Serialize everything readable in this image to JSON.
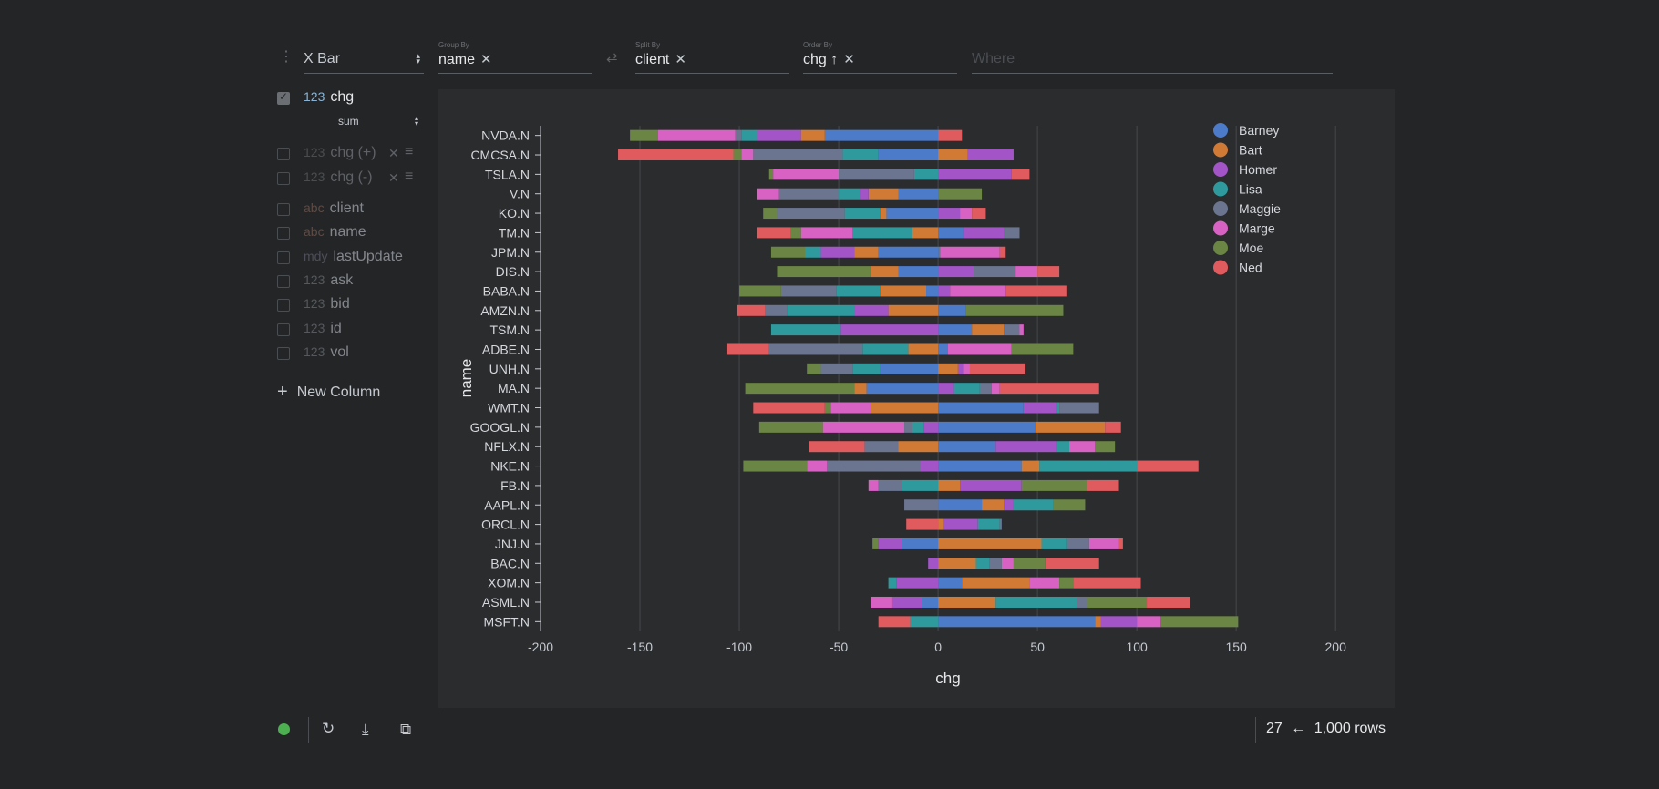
{
  "toolbar": {
    "plugin": "X Bar",
    "group_by": {
      "label": "Group By",
      "value": "name"
    },
    "split_by": {
      "label": "Split By",
      "value": "client"
    },
    "order_by": {
      "label": "Order By",
      "value": "chg ↑"
    },
    "where_placeholder": "Where"
  },
  "sidebar": {
    "active": [
      {
        "type": "123",
        "name": "chg",
        "agg": "sum"
      }
    ],
    "expressions": [
      {
        "type": "123",
        "name": "chg (+)"
      },
      {
        "type": "123",
        "name": "chg (-)"
      }
    ],
    "columns": [
      {
        "type": "abc",
        "name": "client"
      },
      {
        "type": "abc",
        "name": "name"
      },
      {
        "type": "mdy",
        "name": "lastUpdate"
      },
      {
        "type": "123",
        "name": "ask"
      },
      {
        "type": "123",
        "name": "bid"
      },
      {
        "type": "123",
        "name": "id"
      },
      {
        "type": "123",
        "name": "vol"
      }
    ],
    "new_column": "New Column"
  },
  "footer": {
    "count": "27",
    "arrow": "←",
    "rows": "1,000 rows",
    "status_color": "#4caf50"
  },
  "chart_data": {
    "type": "bar",
    "orientation": "horizontal",
    "stacked": true,
    "xlabel": "chg",
    "ylabel": "name",
    "xlim": [
      -200,
      210
    ],
    "xticks": [
      -200,
      -150,
      -100,
      -50,
      0,
      50,
      100,
      150,
      200
    ],
    "legend_position": "top-right",
    "grid": true,
    "categories": [
      "NVDA.N",
      "CMCSA.N",
      "TSLA.N",
      "V.N",
      "KO.N",
      "TM.N",
      "JPM.N",
      "DIS.N",
      "BABA.N",
      "AMZN.N",
      "TSM.N",
      "ADBE.N",
      "UNH.N",
      "MA.N",
      "WMT.N",
      "GOOGL.N",
      "NFLX.N",
      "NKE.N",
      "FB.N",
      "AAPL.N",
      "ORCL.N",
      "JNJ.N",
      "BAC.N",
      "XOM.N",
      "ASML.N",
      "MSFT.N"
    ],
    "series": [
      {
        "name": "Barney",
        "color": "#4c7bc9",
        "values": [
          -57,
          -30,
          0,
          -20,
          -26,
          13,
          -30,
          -20,
          -6,
          14,
          17,
          5,
          -29,
          -36,
          43,
          49,
          29,
          42,
          0,
          22,
          0,
          -18,
          0,
          12,
          -8,
          79
        ]
      },
      {
        "name": "Bart",
        "color": "#d07a36",
        "values": [
          -12,
          15,
          0,
          -15,
          -3,
          -13,
          -12,
          -14,
          -23,
          -25,
          16,
          -15,
          10,
          -6,
          -34,
          35,
          -20,
          9,
          11,
          11,
          3,
          52,
          19,
          34,
          29,
          3
        ]
      },
      {
        "name": "Homer",
        "color": "#a355c8",
        "values": [
          -22,
          23,
          37,
          -4,
          11,
          20,
          -17,
          18,
          6,
          -17,
          -49,
          0,
          3,
          8,
          17,
          -7,
          31,
          -9,
          31,
          5,
          17,
          -12,
          -5,
          -21,
          -15,
          18
        ]
      },
      {
        "name": "Lisa",
        "color": "#2f9a9e",
        "values": [
          -8,
          -18,
          -12,
          -11,
          -18,
          -30,
          -8,
          0,
          -22,
          -34,
          -35,
          -23,
          -14,
          13,
          1,
          -6,
          6,
          49,
          -18,
          20,
          11,
          13,
          7,
          -4,
          41,
          -14
        ]
      },
      {
        "name": "Maggie",
        "color": "#6b7590",
        "values": [
          -3,
          -45,
          -38,
          -30,
          -34,
          8,
          1,
          21,
          -28,
          -11,
          8,
          -47,
          -16,
          6,
          20,
          -4,
          -17,
          -47,
          -12,
          -17,
          1,
          11,
          6,
          0,
          5,
          0
        ]
      },
      {
        "name": "Marge",
        "color": "#d862c4",
        "values": [
          -39,
          -6,
          -33,
          -11,
          6,
          -26,
          30,
          11,
          28,
          0,
          2,
          32,
          3,
          4,
          -20,
          -41,
          13,
          -10,
          -5,
          0,
          0,
          15,
          6,
          15,
          -11,
          12
        ]
      },
      {
        "name": "Moe",
        "color": "#6b8544",
        "values": [
          -14,
          -4,
          -2,
          22,
          -7,
          -5,
          -17,
          -47,
          -21,
          49,
          0,
          31,
          -7,
          -55,
          -3,
          -32,
          10,
          -32,
          33,
          16,
          0,
          -3,
          16,
          7,
          30,
          39
        ]
      },
      {
        "name": "Ned",
        "color": "#e05b5e",
        "values": [
          12,
          -58,
          9,
          0,
          7,
          -17,
          3,
          11,
          31,
          -14,
          0,
          -21,
          28,
          50,
          -36,
          8,
          -28,
          31,
          16,
          0,
          -16,
          2,
          27,
          34,
          22,
          -16
        ]
      }
    ]
  }
}
